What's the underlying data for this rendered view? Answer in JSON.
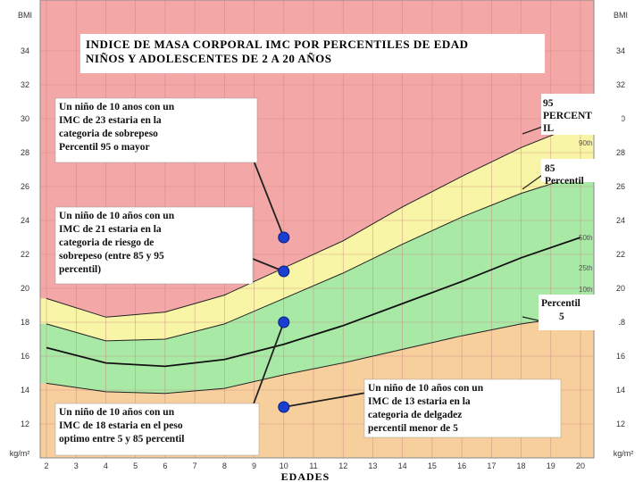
{
  "chart_data": {
    "type": "line",
    "title": "INDICE DE MASA CORPORAL IMC POR PERCENTILES DE EDAD NIÑOS Y ADOLESCENTES DE 2 A 20 AÑOS",
    "x_label": "EDADES",
    "y_label_top": "BMI",
    "y_label_bottom": "kg/m²",
    "x": [
      2,
      4,
      6,
      8,
      10,
      12,
      14,
      16,
      18,
      20
    ],
    "xlim": [
      2,
      20
    ],
    "xticks": [
      2,
      3,
      4,
      5,
      6,
      7,
      8,
      9,
      10,
      11,
      12,
      13,
      14,
      15,
      16,
      17,
      18,
      19,
      20
    ],
    "ylim": [
      10,
      37
    ],
    "yticks": [
      12,
      14,
      16,
      18,
      20,
      22,
      24,
      26,
      28,
      30,
      32,
      34
    ],
    "grid": true,
    "series": [
      {
        "name": "95 PERCENTIL",
        "color": "#222222",
        "values": [
          19.4,
          18.3,
          18.6,
          19.6,
          21.2,
          22.8,
          24.8,
          26.6,
          28.3,
          29.7
        ]
      },
      {
        "name": "85 Percentil",
        "color": "#222222",
        "values": [
          17.9,
          16.9,
          17.0,
          17.9,
          19.4,
          20.9,
          22.6,
          24.2,
          25.6,
          26.7
        ]
      },
      {
        "name": "50th",
        "color": "#111111",
        "values": [
          16.5,
          15.6,
          15.4,
          15.8,
          16.7,
          17.8,
          19.1,
          20.4,
          21.8,
          23.0
        ]
      },
      {
        "name": "Percentil 5",
        "color": "#222222",
        "values": [
          14.4,
          13.9,
          13.8,
          14.1,
          14.9,
          15.6,
          16.4,
          17.2,
          17.9,
          18.4
        ]
      }
    ],
    "curve_labels": [
      "90th",
      "25th",
      "10th"
    ],
    "points": {
      "color": "#1a3fd0",
      "x": [
        10,
        10,
        10,
        10
      ],
      "values": [
        23,
        21,
        18,
        13
      ]
    },
    "annotations": [
      {
        "lines": [
          "Un niño de 10 anos con un",
          "IMC de 23 estaria en la",
          "categoria de sobrepeso",
          "Percentil 95 o mayor"
        ]
      },
      {
        "lines": [
          "Un niño de 10 años con un",
          "IMC de 21 estaria en la",
          "categoria de riesgo de",
          "sobrepeso (entre 85 y 95",
          "percentil)"
        ]
      },
      {
        "lines": [
          "Un niño de 10 años con un",
          "IMC de 18 estaria en el peso",
          "optimo entre 5 y 85 percentil"
        ]
      },
      {
        "lines": [
          "Un niño de 10 años con un",
          "IMC de 13 estaria en la",
          "categoria de delgadez",
          "percentil menor de 5"
        ]
      }
    ]
  }
}
